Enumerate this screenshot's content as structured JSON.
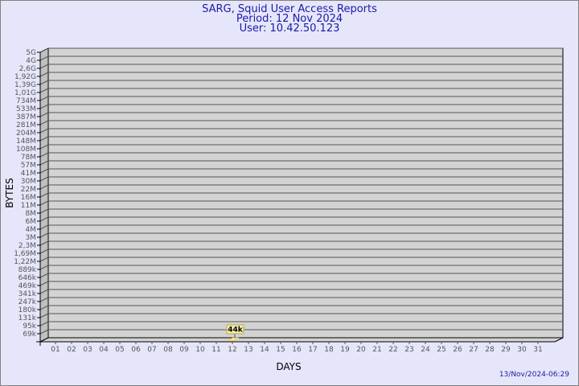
{
  "header": {
    "title": "SARG, Squid User Access Reports",
    "period": "Period: 12 Nov 2024",
    "user": "User: 10.42.50.123"
  },
  "footer": {
    "timestamp": "13/Nov/2024-06:29"
  },
  "colors": {
    "background": "#e6e6fa",
    "wall": "#d3d3d3",
    "side_wall": "#c0c0c0",
    "bar": "#f5e08a",
    "label_bg": "#f5eeaa",
    "title": "#1a1aa6"
  },
  "chart_data": {
    "type": "bar",
    "xlabel": "DAYS",
    "ylabel": "BYTES",
    "y_scale": "log",
    "grid": true,
    "y_ticks": [
      "5G",
      "4G",
      "2,6G",
      "1,92G",
      "1,39G",
      "1,01G",
      "734M",
      "533M",
      "387M",
      "281M",
      "204M",
      "148M",
      "108M",
      "78M",
      "57M",
      "41M",
      "30M",
      "22M",
      "16M",
      "11M",
      "8M",
      "6M",
      "4M",
      "3M",
      "2,3M",
      "1,69M",
      "1,22M",
      "889k",
      "646k",
      "469k",
      "341k",
      "247k",
      "180k",
      "131k",
      "95k",
      "69k"
    ],
    "categories": [
      "01",
      "02",
      "03",
      "04",
      "05",
      "06",
      "07",
      "08",
      "09",
      "10",
      "11",
      "12",
      "13",
      "14",
      "15",
      "16",
      "17",
      "18",
      "19",
      "20",
      "21",
      "22",
      "23",
      "24",
      "25",
      "26",
      "27",
      "28",
      "29",
      "30",
      "31"
    ],
    "bars": [
      {
        "day": "12",
        "value": 44000,
        "label": "44k"
      }
    ]
  }
}
